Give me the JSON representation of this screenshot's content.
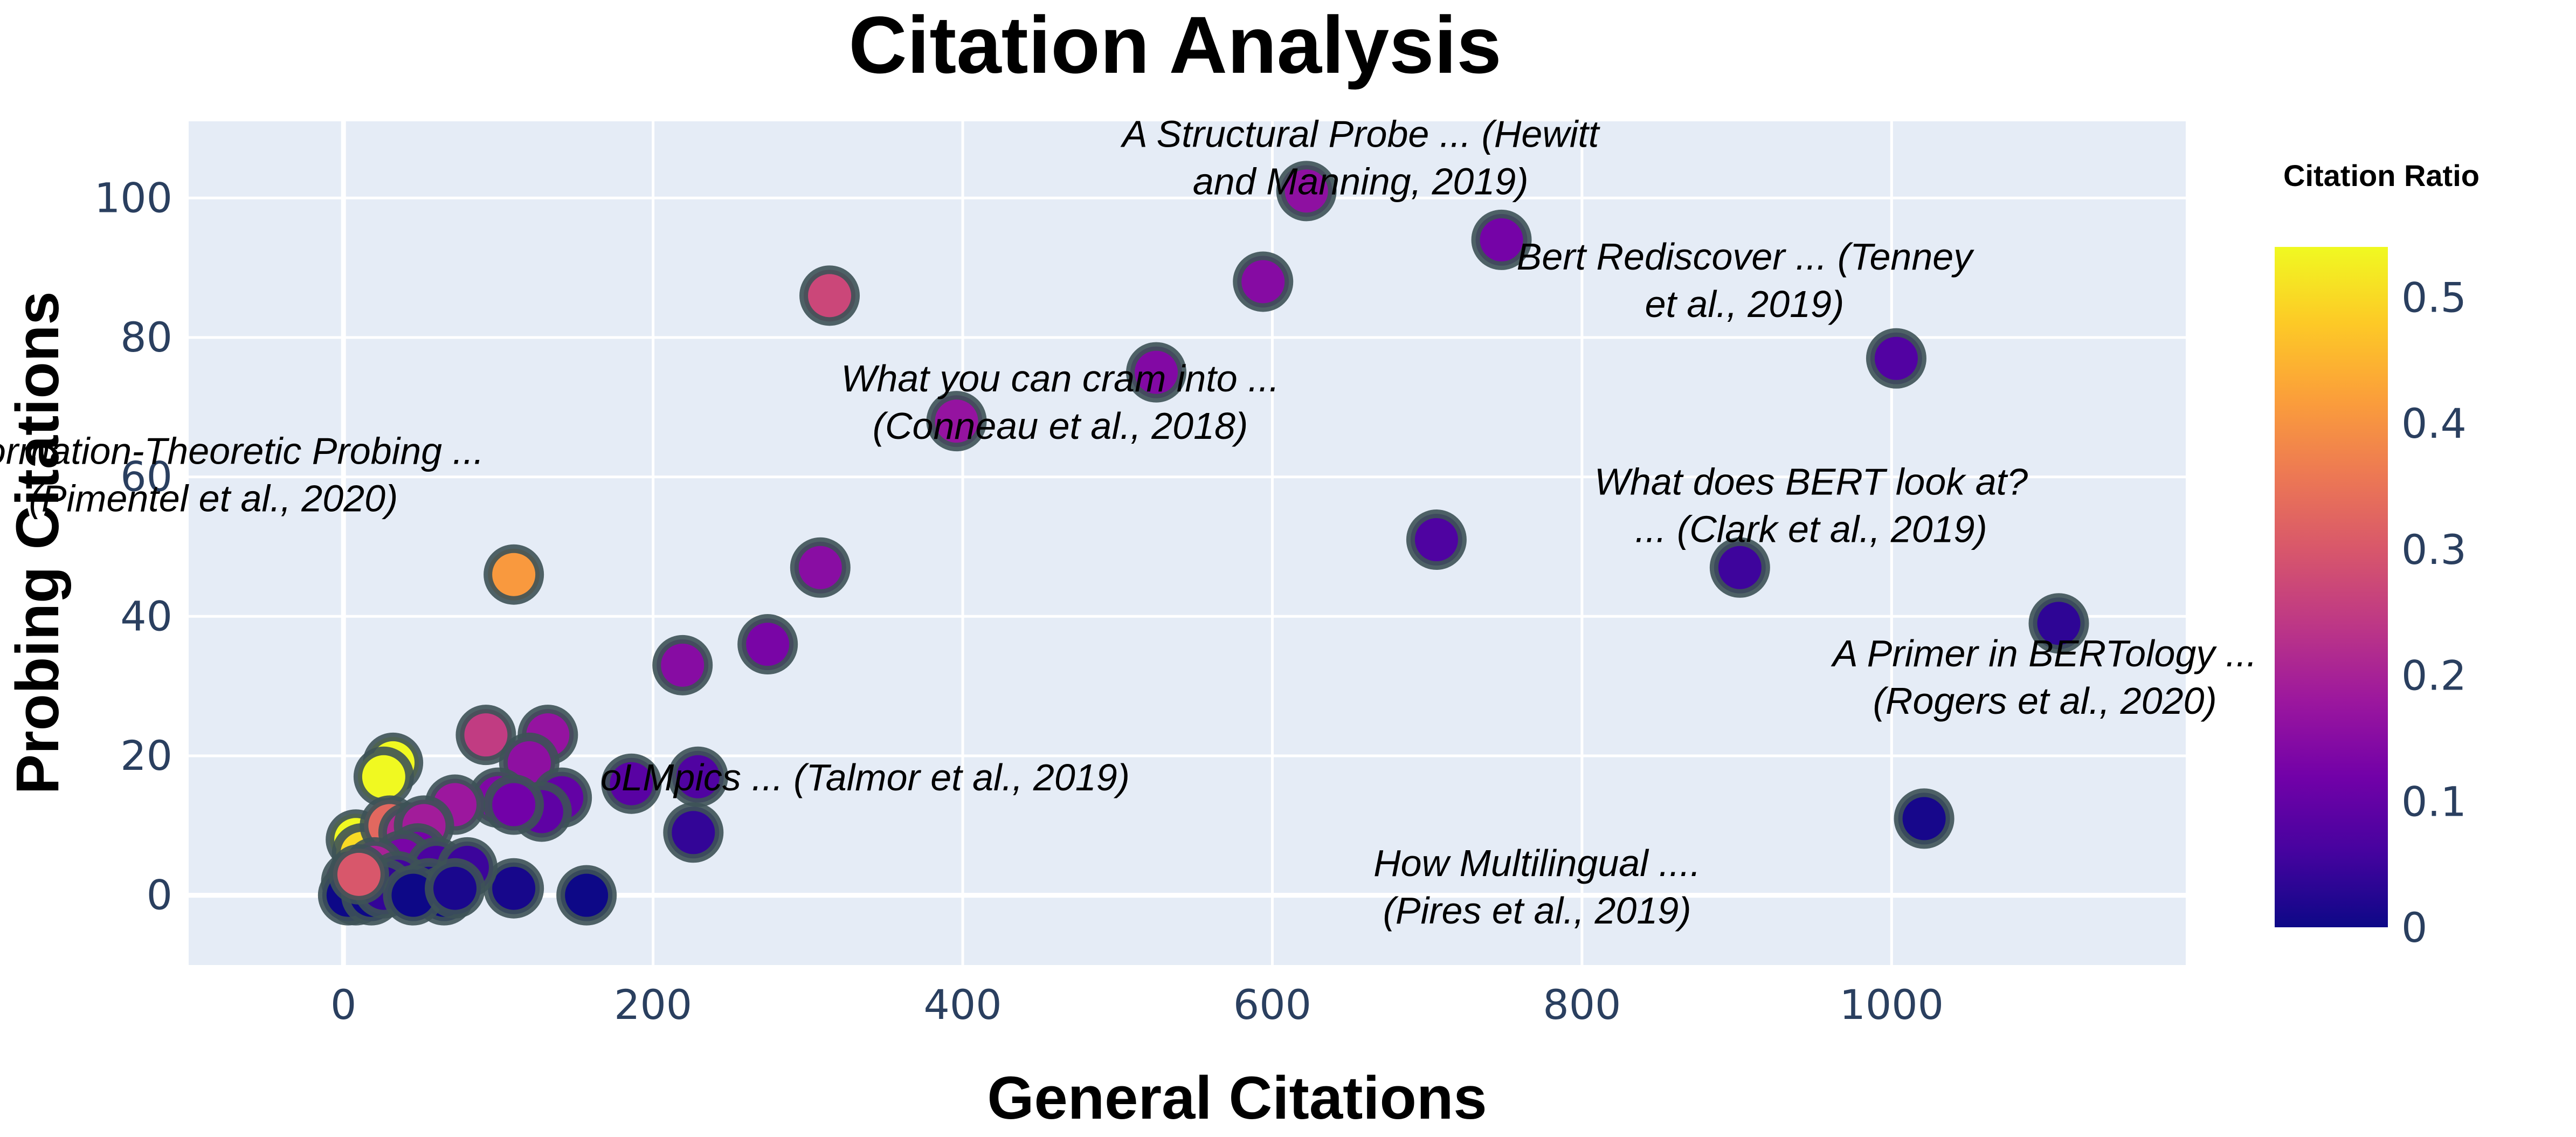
{
  "chart_data": {
    "type": "scatter",
    "title": "Citation Analysis",
    "xlabel": "General Citations",
    "ylabel": "Probing Citations",
    "xlim": [
      -100,
      1190
    ],
    "ylim": [
      -10,
      111
    ],
    "x_ticks": [
      0,
      200,
      400,
      600,
      800,
      1000
    ],
    "y_ticks": [
      0,
      20,
      40,
      60,
      80,
      100
    ],
    "grid": true,
    "colorbar": {
      "title": "Citation Ratio",
      "range": [
        0,
        0.54
      ],
      "ticks": [
        "0",
        "0.1",
        "0.2",
        "0.3",
        "0.4",
        "0.5"
      ],
      "tick_values": [
        0,
        0.1,
        0.2,
        0.3,
        0.4,
        0.5
      ],
      "colorscale": [
        "#0d0887",
        "#46039f",
        "#7201a8",
        "#9c179e",
        "#bd3786",
        "#d8576b",
        "#ed7953",
        "#fb9f3a",
        "#fdca26",
        "#f0f921"
      ]
    },
    "points": [
      {
        "x": 622,
        "y": 101,
        "c": 0.16
      },
      {
        "x": 748,
        "y": 94,
        "c": 0.125
      },
      {
        "x": 314,
        "y": 86,
        "c": 0.27
      },
      {
        "x": 594,
        "y": 88,
        "c": 0.148
      },
      {
        "x": 525,
        "y": 75,
        "c": 0.143
      },
      {
        "x": 396,
        "y": 68,
        "c": 0.17
      },
      {
        "x": 1003,
        "y": 77,
        "c": 0.077
      },
      {
        "x": 706,
        "y": 51,
        "c": 0.072
      },
      {
        "x": 902,
        "y": 47,
        "c": 0.052
      },
      {
        "x": 1108,
        "y": 39,
        "c": 0.035
      },
      {
        "x": 1021,
        "y": 11,
        "c": 0.011
      },
      {
        "x": 110,
        "y": 46,
        "c": 0.41
      },
      {
        "x": 308,
        "y": 47,
        "c": 0.153
      },
      {
        "x": 274,
        "y": 36,
        "c": 0.13
      },
      {
        "x": 219,
        "y": 33,
        "c": 0.15
      },
      {
        "x": 229,
        "y": 17,
        "c": 0.074
      },
      {
        "x": 226,
        "y": 9,
        "c": 0.04
      },
      {
        "x": 186,
        "y": 16,
        "c": 0.086
      },
      {
        "x": 157,
        "y": 0,
        "c": 0.0
      },
      {
        "x": 110,
        "y": 1,
        "c": 0.01
      },
      {
        "x": 92,
        "y": 23,
        "c": 0.25
      },
      {
        "x": 132,
        "y": 23,
        "c": 0.17
      },
      {
        "x": 120,
        "y": 19,
        "c": 0.16
      },
      {
        "x": 141,
        "y": 14,
        "c": 0.1
      },
      {
        "x": 128,
        "y": 12,
        "c": 0.094
      },
      {
        "x": 100,
        "y": 14,
        "c": 0.14
      },
      {
        "x": 110,
        "y": 13,
        "c": 0.12
      },
      {
        "x": 72,
        "y": 13,
        "c": 0.18
      },
      {
        "x": 32,
        "y": 19,
        "c": 0.58
      },
      {
        "x": 26,
        "y": 17,
        "c": 0.6
      },
      {
        "x": 8,
        "y": 8,
        "c": 1.0
      },
      {
        "x": 12,
        "y": 6,
        "c": 0.5
      },
      {
        "x": 30,
        "y": 10,
        "c": 0.33
      },
      {
        "x": 42,
        "y": 9,
        "c": 0.21
      },
      {
        "x": 52,
        "y": 10,
        "c": 0.19
      },
      {
        "x": 48,
        "y": 6,
        "c": 0.125
      },
      {
        "x": 38,
        "y": 5,
        "c": 0.13
      },
      {
        "x": 20,
        "y": 4,
        "c": 0.2
      },
      {
        "x": 60,
        "y": 4,
        "c": 0.067
      },
      {
        "x": 80,
        "y": 4,
        "c": 0.05
      },
      {
        "x": 35,
        "y": 2,
        "c": 0.057
      },
      {
        "x": 55,
        "y": 1,
        "c": 0.018
      },
      {
        "x": 65,
        "y": 0,
        "c": 0.0
      },
      {
        "x": 15,
        "y": 1,
        "c": 0.067
      },
      {
        "x": 5,
        "y": 2,
        "c": 0.2
      },
      {
        "x": 8,
        "y": 0,
        "c": 0.0
      },
      {
        "x": 3,
        "y": 0,
        "c": 0.0
      },
      {
        "x": 18,
        "y": 0,
        "c": 0.0
      },
      {
        "x": 26,
        "y": 1,
        "c": 0.04
      },
      {
        "x": 45,
        "y": 0,
        "c": 0.0
      },
      {
        "x": 72,
        "y": 1,
        "c": 0.014
      },
      {
        "x": 10,
        "y": 3,
        "c": 0.3
      }
    ],
    "annotations": [
      {
        "lines": [
          "A Structural Probe ... (Hewitt",
          "and Manning, 2019)"
        ],
        "x": 657,
        "y": 105.8
      },
      {
        "lines": [
          "Bert Rediscover ... (Tenney",
          "et al., 2019)"
        ],
        "x": 905,
        "y": 88.2
      },
      {
        "lines": [
          "What you can cram into ...",
          "(Conneau et al., 2018)"
        ],
        "x": 463,
        "y": 70.7
      },
      {
        "lines": [
          "Information-Theoretic Probing ...",
          "(Pimentel et al., 2020)"
        ],
        "x": -84,
        "y": 60.3
      },
      {
        "lines": [
          "What does BERT look at?",
          "... (Clark et al., 2019)"
        ],
        "x": 948,
        "y": 55.9
      },
      {
        "lines": [
          "A Primer in BERTology ...",
          "(Rogers et al., 2020)"
        ],
        "x": 1099,
        "y": 31.3
      },
      {
        "lines": [
          "oLMpics ... (Talmor et al., 2019)"
        ],
        "x": 337,
        "y": 16.9
      },
      {
        "lines": [
          "How Multilingual ....",
          "(Pires et al., 2019)"
        ],
        "x": 771,
        "y": 1.2
      }
    ]
  }
}
